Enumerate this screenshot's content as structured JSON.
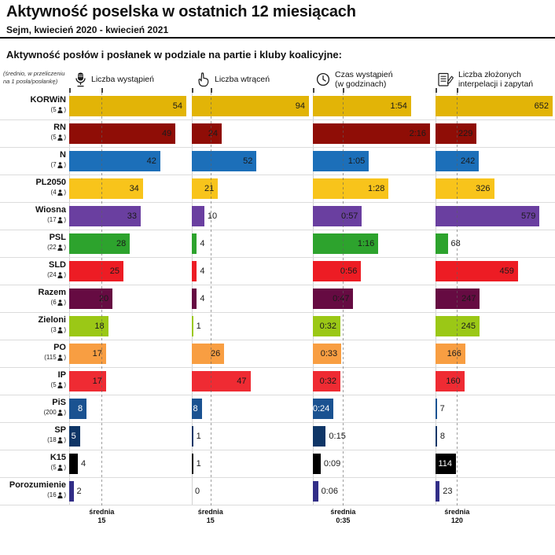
{
  "header": {
    "title": "Aktywność poselska w ostatnich 12 miesiącach",
    "subtitle": "Sejm, kwiecień 2020 - kwiecień 2021",
    "section_heading": "Aktywność posłów i posłanek w podziale na partie i kluby koalicyjne:",
    "footnote": "(średnio, w przeliczeniu na 1 posła/posłankę)"
  },
  "chart_data": {
    "type": "bar",
    "orientation": "horizontal",
    "note": "Each panel is scaled independently to its maximum value; dashed line marks the average.",
    "panels": [
      {
        "id": "wystapienia",
        "label_lines": [
          "Liczba wystąpień"
        ],
        "icon": "microphone-icon",
        "max": 54,
        "average_label": "średnia",
        "average": "15",
        "average_value": 15
      },
      {
        "id": "wtracenia",
        "label_lines": [
          "Liczba wtrąceń"
        ],
        "icon": "raised-finger-icon",
        "max": 94,
        "average_label": "średnia",
        "average": "15",
        "average_value": 15
      },
      {
        "id": "czas",
        "label_lines": [
          "Czas wystąpień",
          "(w godzinach)"
        ],
        "icon": "clock-icon",
        "max": 136,
        "average_label": "średnia",
        "average": "0:35",
        "average_value": 35
      },
      {
        "id": "interpelacje",
        "label_lines": [
          "Liczba złożonych",
          "interpelacji i zapytań"
        ],
        "icon": "interpellation-document-icon",
        "max": 652,
        "average_label": "średnia",
        "average": "120",
        "average_value": 120
      }
    ],
    "rows": [
      {
        "party": "KORWiN",
        "members": "5",
        "color": "#E2B407",
        "values": [
          "54",
          "94",
          "1:54",
          "652"
        ],
        "numeric": [
          54,
          94,
          114,
          652
        ]
      },
      {
        "party": "RN",
        "members": "5",
        "color": "#8F0D06",
        "values": [
          "49",
          "24",
          "2:16",
          "229"
        ],
        "numeric": [
          49,
          24,
          136,
          229
        ]
      },
      {
        "party": "N",
        "members": "7",
        "color": "#1C6FB9",
        "values": [
          "42",
          "52",
          "1:05",
          "242"
        ],
        "numeric": [
          42,
          52,
          65,
          242
        ]
      },
      {
        "party": "PL2050",
        "members": "4",
        "color": "#F8C41B",
        "values": [
          "34",
          "21",
          "1:28",
          "326"
        ],
        "numeric": [
          34,
          21,
          88,
          326
        ]
      },
      {
        "party": "Wiosna",
        "members": "17",
        "color": "#6A3FA0",
        "values": [
          "33",
          "10",
          "0:57",
          "579"
        ],
        "numeric": [
          33,
          10,
          57,
          579
        ]
      },
      {
        "party": "PSL",
        "members": "22",
        "color": "#2DA32D",
        "values": [
          "28",
          "4",
          "1:16",
          "68"
        ],
        "numeric": [
          28,
          4,
          76,
          68
        ]
      },
      {
        "party": "SLD",
        "members": "24",
        "color": "#ED1C24",
        "values": [
          "25",
          "4",
          "0:56",
          "459"
        ],
        "numeric": [
          25,
          4,
          56,
          459
        ]
      },
      {
        "party": "Razem",
        "members": "6",
        "color": "#660B42",
        "values": [
          "20",
          "4",
          "0:47",
          "247"
        ],
        "numeric": [
          20,
          4,
          47,
          247
        ]
      },
      {
        "party": "Zieloni",
        "members": "3",
        "color": "#9BC816",
        "values": [
          "18",
          "1",
          "0:32",
          "245"
        ],
        "numeric": [
          18,
          1,
          32,
          245
        ]
      },
      {
        "party": "PO",
        "members": "115",
        "color": "#F89E42",
        "values": [
          "17",
          "26",
          "0:33",
          "166"
        ],
        "numeric": [
          17,
          26,
          33,
          166
        ]
      },
      {
        "party": "IP",
        "members": "5",
        "color": "#EF2B33",
        "values": [
          "17",
          "47",
          "0:32",
          "160"
        ],
        "numeric": [
          17,
          47,
          32,
          160
        ]
      },
      {
        "party": "PiS",
        "members": "200",
        "color": "#1A5291",
        "values": [
          "8",
          "8",
          "0:24",
          "7"
        ],
        "numeric": [
          8,
          8,
          24,
          7
        ],
        "value_color": "#ffffff"
      },
      {
        "party": "SP",
        "members": "18",
        "color": "#0F3667",
        "values": [
          "5",
          "1",
          "0:15",
          "8"
        ],
        "numeric": [
          5,
          1,
          15,
          8
        ],
        "value_color": "#ffffff"
      },
      {
        "party": "K15",
        "members": "5",
        "color": "#000000",
        "values": [
          "4",
          "1",
          "0:09",
          "114"
        ],
        "numeric": [
          4,
          1,
          9,
          114
        ],
        "value_color": "#ffffff"
      },
      {
        "party": "Porozumienie",
        "members": "16",
        "color": "#322E87",
        "values": [
          "2",
          "0",
          "0:06",
          "23"
        ],
        "numeric": [
          2,
          0,
          6,
          23
        ]
      }
    ]
  }
}
